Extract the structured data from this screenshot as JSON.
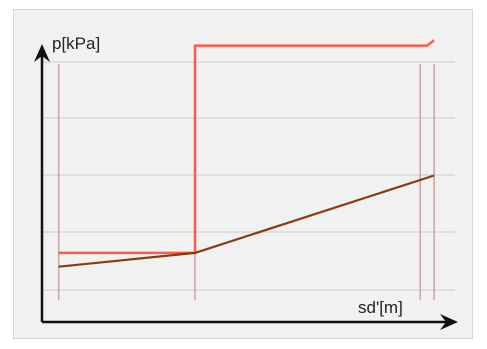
{
  "chart_data": {
    "type": "line",
    "ylabel": "p[kPa]",
    "xlabel": "sd'[m]",
    "x_unit": "m",
    "y_unit": "kPa",
    "grid": true,
    "series": [
      {
        "color": "#ff5a4a",
        "points": [
          {
            "x": 0.0,
            "y": 0.25
          },
          {
            "x": 0.98,
            "y": 0.25
          },
          {
            "x": 0.98,
            "y": 1.0
          },
          {
            "x": 2.65,
            "y": 1.0
          },
          {
            "x": 2.7,
            "y": 1.02
          }
        ]
      },
      {
        "color": "#8b3a12",
        "points": [
          {
            "x": 0.0,
            "y": 0.2
          },
          {
            "x": 0.98,
            "y": 0.25
          },
          {
            "x": 2.7,
            "y": 0.53
          }
        ]
      }
    ],
    "xlim": [
      -0.12,
      2.85
    ],
    "ylim": [
      0.0,
      1.1
    ]
  },
  "colors": {
    "frame_bg": "#f1f1f1",
    "grid": "#d2d2d2",
    "vertical_guides": "#c9a4a4",
    "axis": "#111111"
  }
}
